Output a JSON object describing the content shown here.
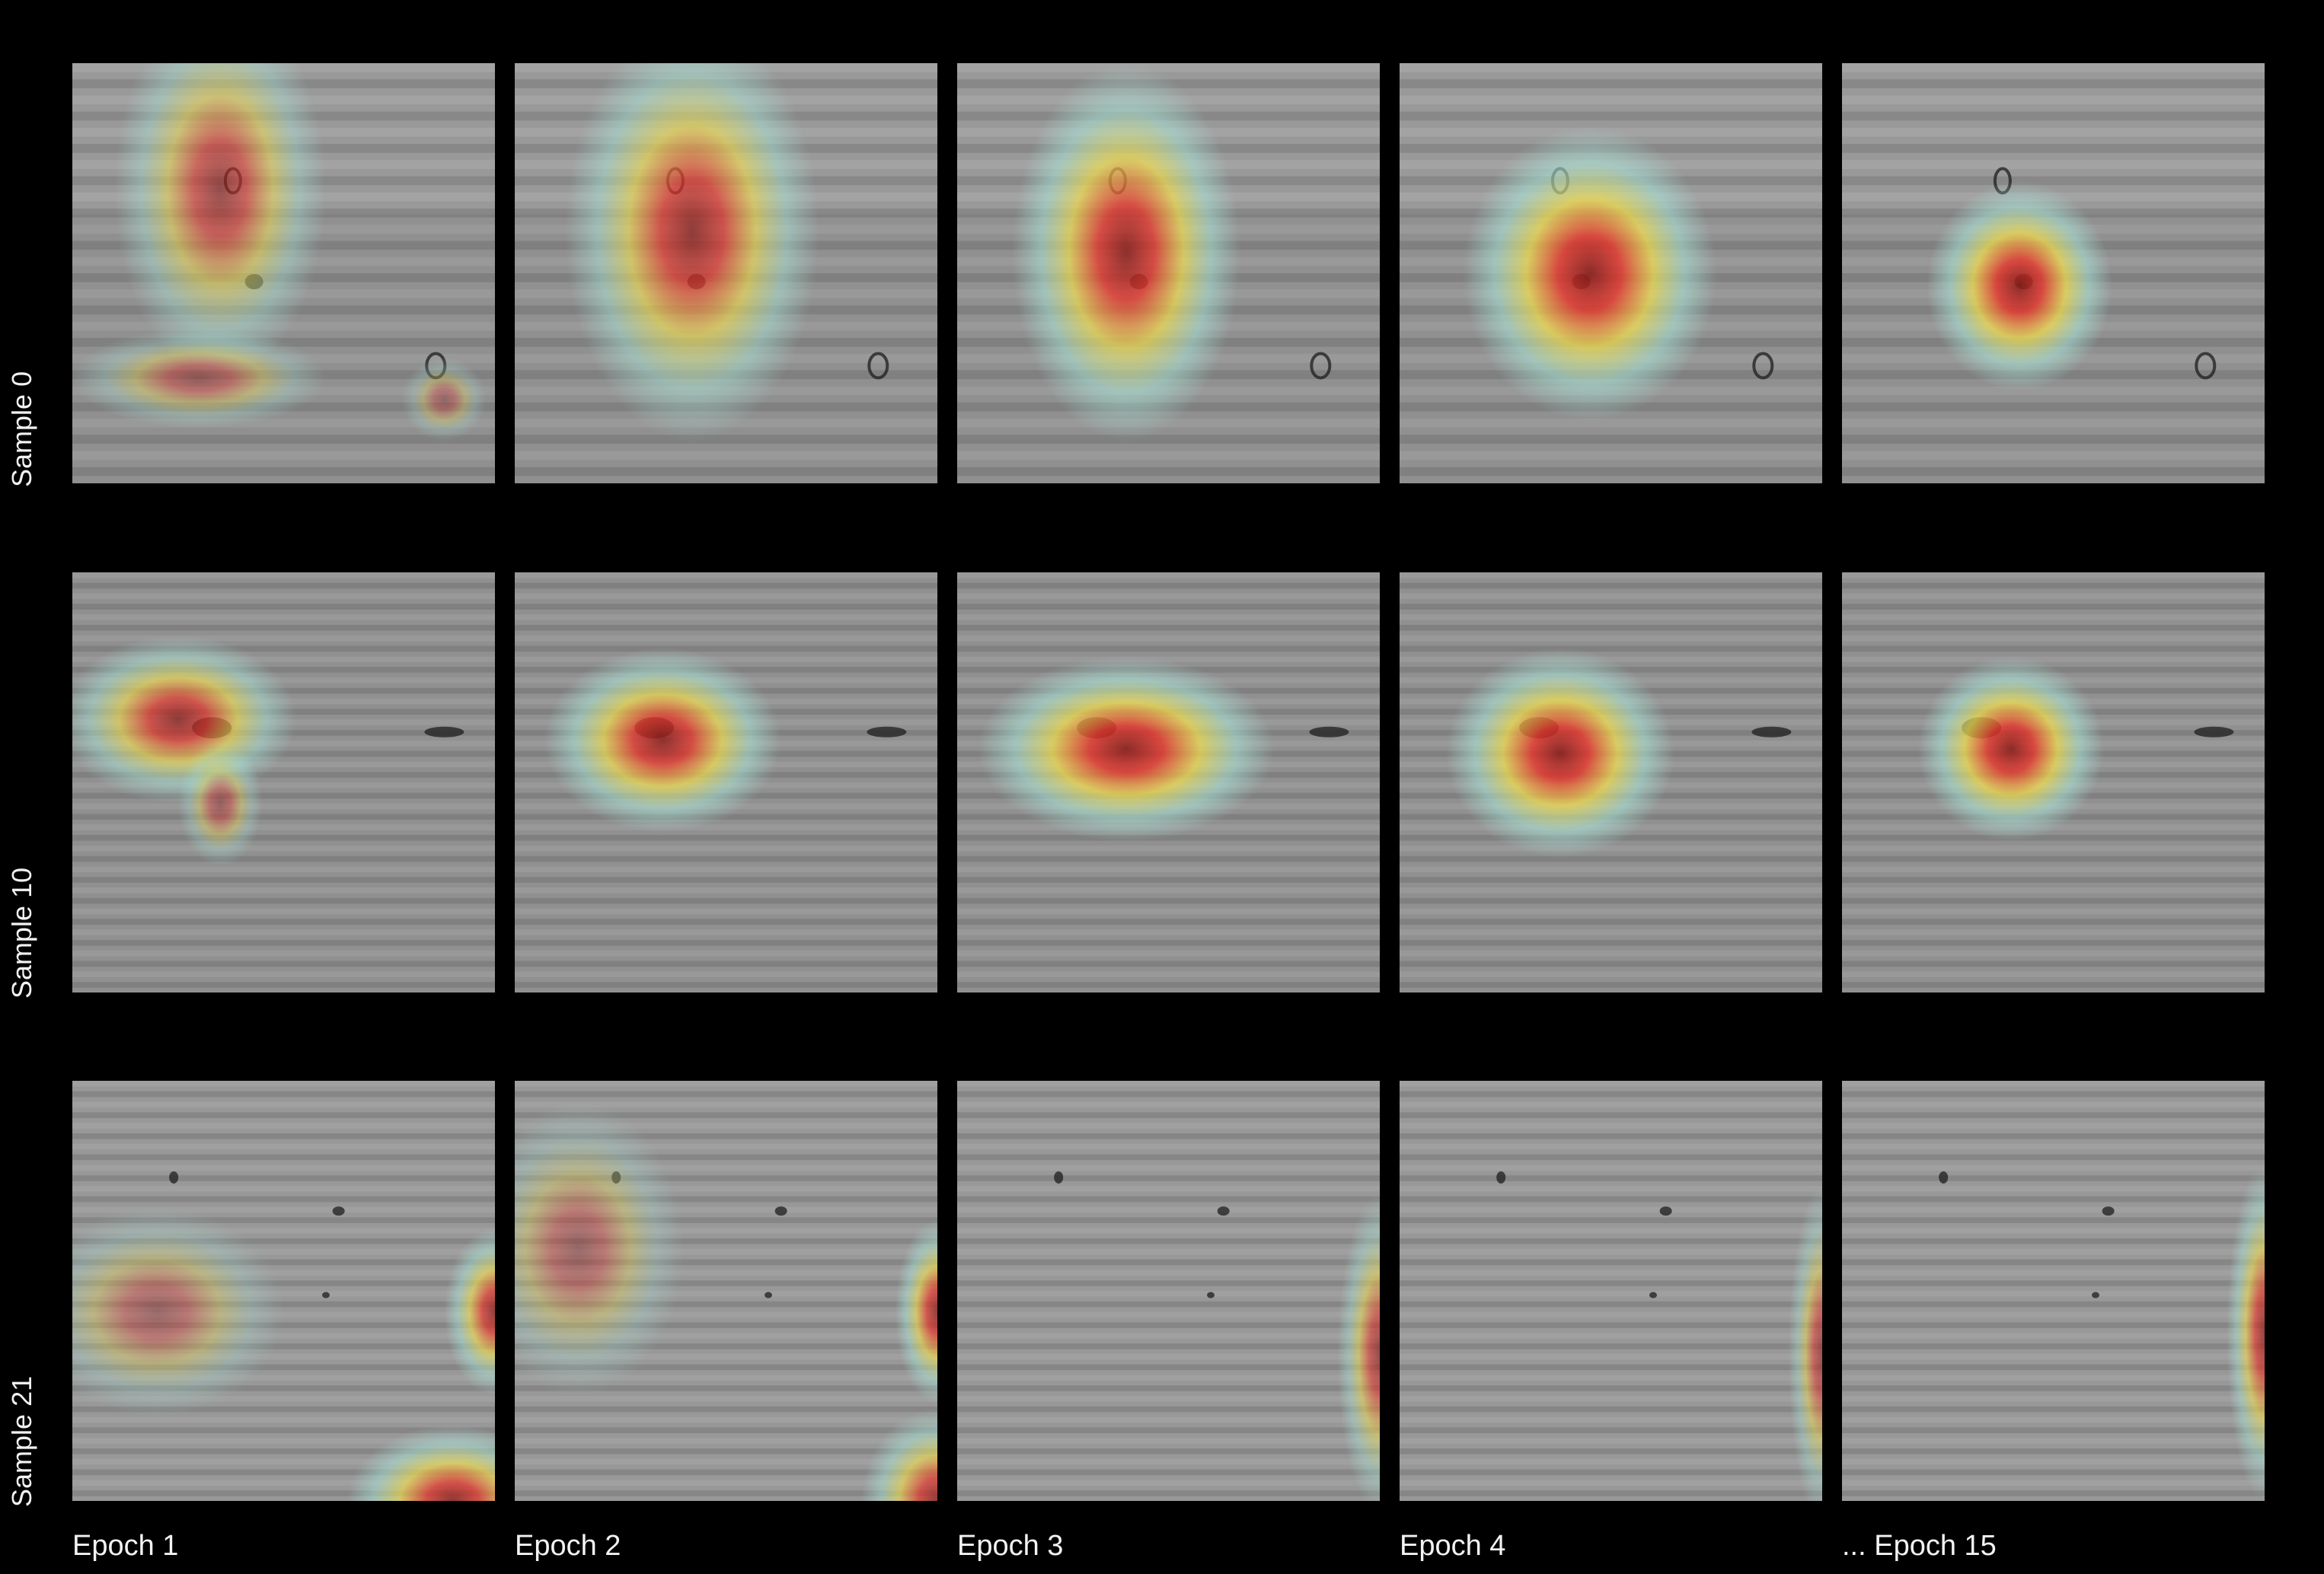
{
  "rows": [
    {
      "label": "Sample 0"
    },
    {
      "label": "Sample 10"
    },
    {
      "label": "Sample 21"
    }
  ],
  "columns": [
    {
      "label": "Epoch 1"
    },
    {
      "label": "Epoch 2"
    },
    {
      "label": "Epoch 3"
    },
    {
      "label": "Epoch 4"
    },
    {
      "label": "... Epoch 15"
    }
  ],
  "colors": {
    "background": "#000000",
    "heat_low": "#a8e6d8",
    "heat_mid": "#f5e14a",
    "heat_high": "#e8342a",
    "heat_peak": "#8a1a16"
  }
}
